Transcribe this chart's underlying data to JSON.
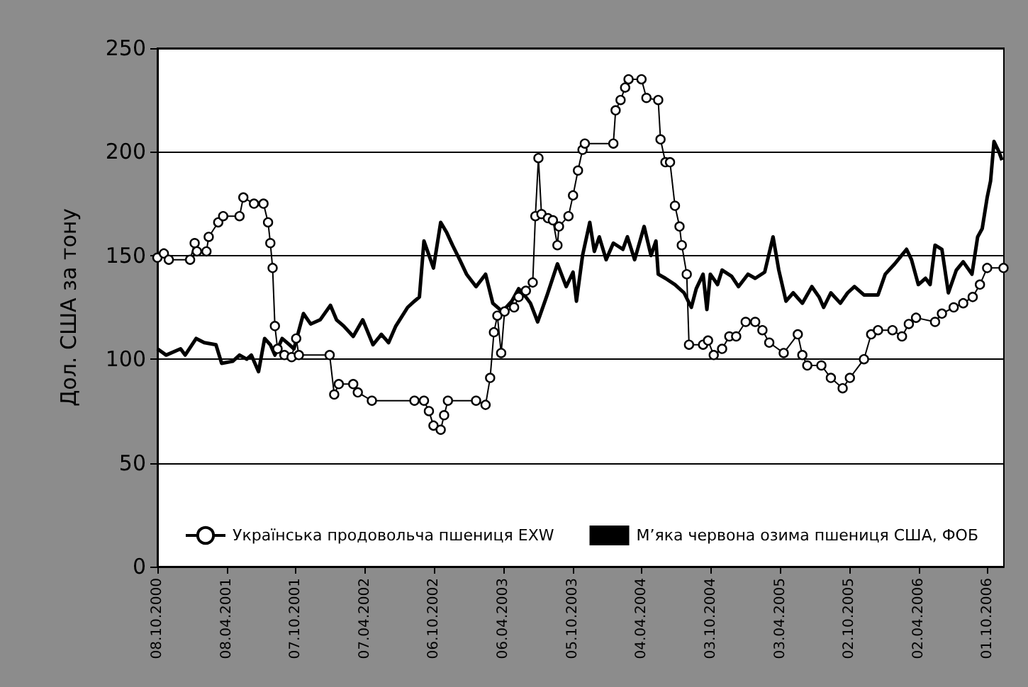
{
  "chart_data": {
    "type": "line",
    "ylabel": "Дол. США за тону",
    "xlim": [
      "2000-10-08",
      "2006-11-12"
    ],
    "xticks": [
      {
        "value": "2000-10-08",
        "label": "08.10.2000"
      },
      {
        "value": "2001-04-08",
        "label": "08.04.2001"
      },
      {
        "value": "2001-10-07",
        "label": "07.10.2001"
      },
      {
        "value": "2002-04-07",
        "label": "07.04.2002"
      },
      {
        "value": "2002-10-06",
        "label": "06.10.2002"
      },
      {
        "value": "2003-04-06",
        "label": "06.04.2003"
      },
      {
        "value": "2003-10-05",
        "label": "05.10.2003"
      },
      {
        "value": "2004-04-04",
        "label": "04.04.2004"
      },
      {
        "value": "2004-10-03",
        "label": "03.10.2004"
      },
      {
        "value": "2005-04-03",
        "label": "03.04.2005"
      },
      {
        "value": "2005-10-02",
        "label": "02.10.2005"
      },
      {
        "value": "2006-04-02",
        "label": "02.04.2006"
      },
      {
        "value": "2006-10-01",
        "label": "01.10.2006"
      }
    ],
    "ylim": [
      0,
      250
    ],
    "yticks": [
      0,
      50,
      100,
      150,
      200,
      250
    ],
    "grid": "y",
    "legend": "bottom",
    "line_style": "solid",
    "series": [
      {
        "name": "Українська продовольча пшениця EXW",
        "color": "#000000",
        "marker": "circle",
        "x": [
          "2000-10-08",
          "2000-10-25",
          "2000-11-07",
          "2001-01-02",
          "2001-01-14",
          "2001-01-20",
          "2001-02-14",
          "2001-02-20",
          "2001-03-17",
          "2001-03-30",
          "2001-05-12",
          "2001-05-22",
          "2001-06-19",
          "2001-07-14",
          "2001-07-26",
          "2001-08-01",
          "2001-08-07",
          "2001-08-13",
          "2001-08-20",
          "2001-09-07",
          "2001-09-26",
          "2001-10-08",
          "2001-10-15",
          "2002-01-04",
          "2002-01-16",
          "2002-01-28",
          "2002-03-07",
          "2002-03-19",
          "2002-04-25",
          "2002-08-15",
          "2002-09-09",
          "2002-09-22",
          "2002-10-04",
          "2002-10-23",
          "2002-11-01",
          "2002-11-11",
          "2003-01-24",
          "2003-02-18",
          "2003-03-02",
          "2003-03-12",
          "2003-03-21",
          "2003-03-31",
          "2003-04-09",
          "2003-05-04",
          "2003-05-16",
          "2003-06-04",
          "2003-06-22",
          "2003-06-29",
          "2003-07-07",
          "2003-07-15",
          "2003-08-01",
          "2003-08-14",
          "2003-08-26",
          "2003-08-30",
          "2003-09-24",
          "2003-10-06",
          "2003-10-19",
          "2003-10-31",
          "2003-11-06",
          "2004-01-20",
          "2004-01-26",
          "2004-02-08",
          "2004-02-20",
          "2004-02-29",
          "2004-04-03",
          "2004-04-16",
          "2004-05-17",
          "2004-05-23",
          "2004-06-05",
          "2004-06-17",
          "2004-06-30",
          "2004-07-12",
          "2004-07-18",
          "2004-07-31",
          "2004-08-06",
          "2004-09-12",
          "2004-09-25",
          "2004-10-10",
          "2004-11-01",
          "2004-11-20",
          "2004-12-08",
          "2005-01-02",
          "2005-01-27",
          "2005-02-15",
          "2005-03-05",
          "2005-04-12",
          "2005-05-19",
          "2005-05-31",
          "2005-06-13",
          "2005-07-20",
          "2005-08-14",
          "2005-09-14",
          "2005-10-03",
          "2005-11-09",
          "2005-11-28",
          "2005-12-16",
          "2006-01-23",
          "2006-02-17",
          "2006-03-07",
          "2006-03-26",
          "2006-05-15",
          "2006-06-02",
          "2006-07-03",
          "2006-07-28",
          "2006-08-22",
          "2006-09-10",
          "2006-09-29",
          "2006-11-11"
        ],
        "values": [
          149,
          151,
          148,
          148,
          156,
          152,
          152,
          159,
          166,
          169,
          169,
          178,
          175,
          175,
          166,
          156,
          144,
          116,
          105,
          102,
          101,
          110,
          102,
          102,
          83,
          88,
          88,
          84,
          80,
          80,
          80,
          75,
          68,
          66,
          73,
          80,
          80,
          78,
          91,
          113,
          121,
          103,
          123,
          125,
          130,
          133,
          137,
          169,
          197,
          170,
          168,
          167,
          155,
          164,
          169,
          179,
          191,
          201,
          204,
          204,
          220,
          225,
          231,
          235,
          235,
          226,
          225,
          206,
          195,
          195,
          174,
          164,
          155,
          141,
          107,
          107,
          109,
          102,
          105,
          111,
          111,
          118,
          118,
          114,
          108,
          103,
          112,
          102,
          97,
          97,
          91,
          86,
          91,
          100,
          112,
          114,
          114,
          111,
          117,
          120,
          118,
          122,
          125,
          127,
          130,
          136,
          144,
          144
        ]
      },
      {
        "name": "М’яка червона озима пшениця США, ФОБ",
        "color": "#000000",
        "marker": "none",
        "x": [
          "2000-10-08",
          "2000-10-31",
          "2000-12-08",
          "2000-12-20",
          "2001-01-18",
          "2001-02-08",
          "2001-03-11",
          "2001-03-26",
          "2001-04-24",
          "2001-05-12",
          "2001-05-31",
          "2001-06-12",
          "2001-07-01",
          "2001-07-17",
          "2001-08-01",
          "2001-08-13",
          "2001-09-01",
          "2001-09-20",
          "2001-10-02",
          "2001-10-27",
          "2001-11-15",
          "2001-12-10",
          "2002-01-06",
          "2002-01-22",
          "2002-02-10",
          "2002-03-07",
          "2002-04-01",
          "2002-04-28",
          "2002-05-20",
          "2002-06-08",
          "2002-06-27",
          "2002-07-28",
          "2002-08-15",
          "2002-08-28",
          "2002-09-09",
          "2002-10-04",
          "2002-10-23",
          "2002-11-08",
          "2002-11-23",
          "2002-12-12",
          "2002-12-30",
          "2003-01-24",
          "2003-02-18",
          "2003-03-09",
          "2003-04-03",
          "2003-04-28",
          "2003-05-16",
          "2003-06-04",
          "2003-06-16",
          "2003-07-05",
          "2003-07-30",
          "2003-08-26",
          "2003-09-18",
          "2003-10-06",
          "2003-10-15",
          "2003-10-31",
          "2003-11-19",
          "2003-12-01",
          "2003-12-14",
          "2004-01-01",
          "2004-01-20",
          "2004-02-14",
          "2004-02-26",
          "2004-03-16",
          "2004-04-10",
          "2004-04-28",
          "2004-05-11",
          "2004-05-17",
          "2004-06-05",
          "2004-06-30",
          "2004-07-24",
          "2004-08-12",
          "2004-08-25",
          "2004-09-12",
          "2004-09-22",
          "2004-10-01",
          "2004-10-20",
          "2004-11-01",
          "2004-11-26",
          "2004-12-14",
          "2005-01-08",
          "2005-01-27",
          "2005-02-21",
          "2005-03-15",
          "2005-03-30",
          "2005-04-18",
          "2005-05-07",
          "2005-05-31",
          "2005-06-25",
          "2005-07-14",
          "2005-07-26",
          "2005-08-14",
          "2005-09-08",
          "2005-09-27",
          "2005-10-15",
          "2005-11-09",
          "2005-12-16",
          "2006-01-04",
          "2006-01-29",
          "2006-03-01",
          "2006-03-14",
          "2006-04-01",
          "2006-04-20",
          "2006-05-02",
          "2006-05-15",
          "2006-06-02",
          "2006-06-19",
          "2006-07-10",
          "2006-07-28",
          "2006-08-20",
          "2006-09-04",
          "2006-09-16",
          "2006-09-29",
          "2006-10-08",
          "2006-10-17",
          "2006-10-30",
          "2006-11-07"
        ],
        "values": [
          105,
          102,
          105,
          102,
          110,
          108,
          107,
          98,
          99,
          102,
          100,
          102,
          94,
          110,
          107,
          102,
          110,
          107,
          105,
          122,
          117,
          119,
          126,
          119,
          116,
          111,
          119,
          107,
          112,
          108,
          116,
          125,
          128,
          130,
          157,
          144,
          166,
          161,
          155,
          148,
          141,
          135,
          141,
          127,
          123,
          128,
          134,
          130,
          127,
          118,
          131,
          146,
          135,
          142,
          128,
          150,
          166,
          152,
          159,
          148,
          156,
          153,
          159,
          148,
          164,
          150,
          157,
          141,
          139,
          136,
          132,
          125,
          134,
          141,
          124,
          141,
          136,
          143,
          140,
          135,
          141,
          139,
          142,
          159,
          143,
          128,
          132,
          127,
          135,
          130,
          125,
          132,
          127,
          132,
          135,
          131,
          131,
          141,
          146,
          153,
          148,
          136,
          139,
          136,
          155,
          153,
          132,
          143,
          147,
          141,
          159,
          163,
          178,
          186,
          205,
          200,
          196
        ]
      }
    ]
  }
}
